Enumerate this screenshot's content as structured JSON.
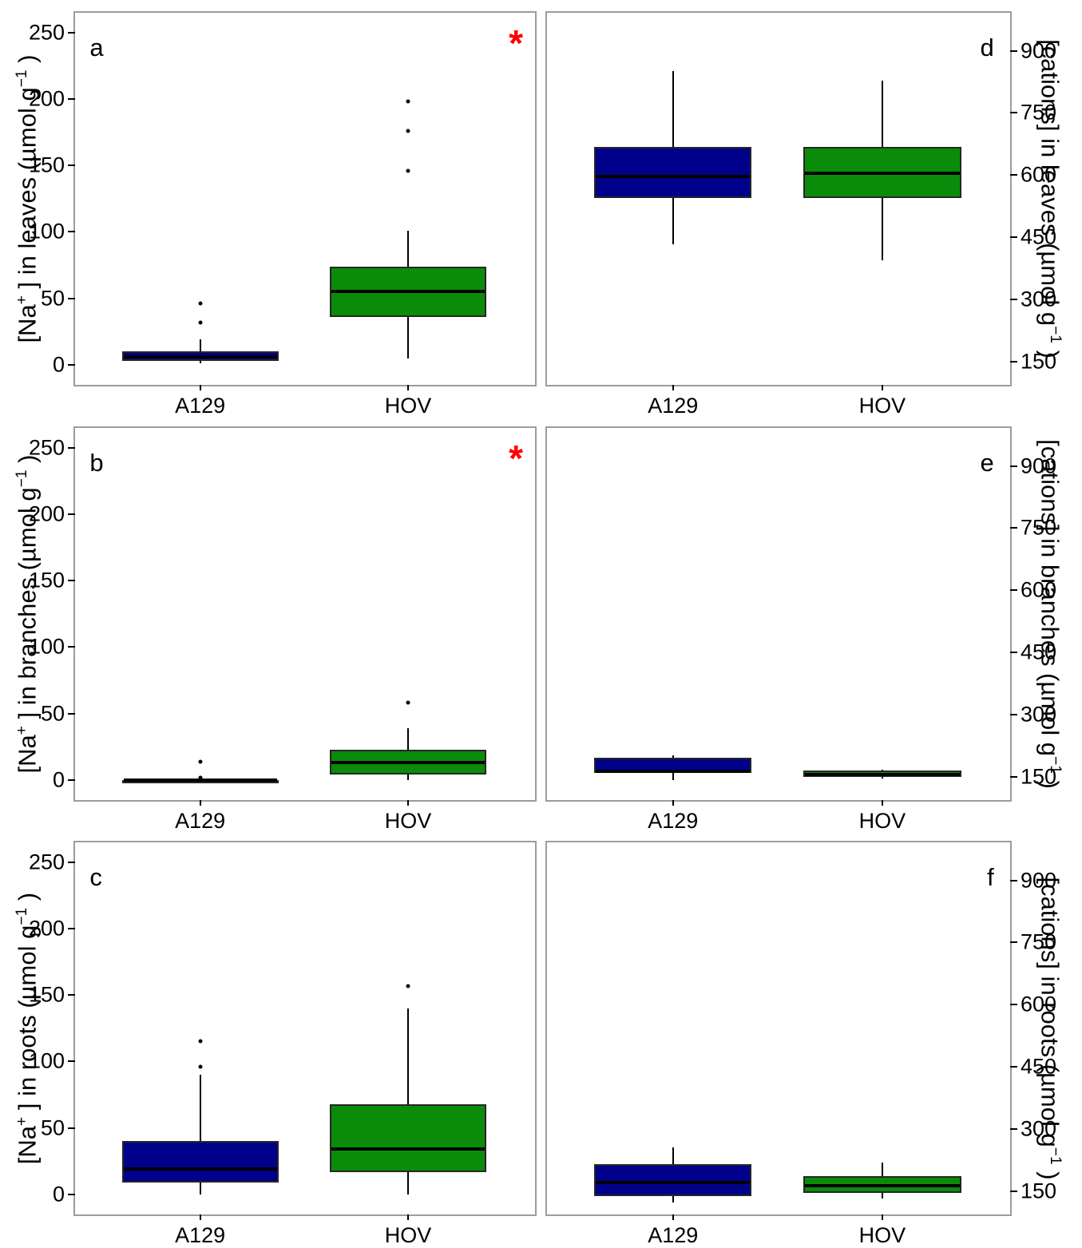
{
  "figure": {
    "x_categories": [
      "A129",
      "HOV"
    ],
    "group_colors": {
      "A129": "#00008B",
      "HOV": "#0A8C0A"
    },
    "significance_color": "#FF0000",
    "panel_border_color": "#9C9C9C",
    "element_colors": {
      "whisker": "#000000",
      "median": "#000000",
      "outlier": "#000000",
      "box_outline": "#262626"
    }
  },
  "chart_data": [
    {
      "panel": "a",
      "type": "box",
      "axis_side": "left",
      "ylabel": "[Na+ ] in leaves (µmol g−1 )",
      "ylabel_html": "[Na<sup>+</sup> ] in leaves (µmol g<sup>−1</sup> )",
      "yticks": [
        0,
        50,
        100,
        150,
        200,
        250
      ],
      "ylim": [
        -16,
        265
      ],
      "grid": false,
      "significance": "*",
      "categories": [
        "A129",
        "HOV"
      ],
      "boxes": [
        {
          "group": "A129",
          "color": "#00008B",
          "whisker_low": 1,
          "q1": 3,
          "median": 6,
          "q3": 10,
          "whisker_high": 19,
          "outliers": [
            32,
            46
          ]
        },
        {
          "group": "HOV",
          "color": "#0A8C0A",
          "whisker_low": 5,
          "q1": 36,
          "median": 55,
          "q3": 74,
          "whisker_high": 101,
          "outliers": [
            146,
            176,
            198
          ]
        }
      ]
    },
    {
      "panel": "b",
      "type": "box",
      "axis_side": "left",
      "ylabel": "[Na+ ] in branches (µmol g−1 )",
      "ylabel_html": "[Na<sup>+</sup> ] in branches (µmol g<sup>−1</sup> )",
      "yticks": [
        0,
        50,
        100,
        150,
        200,
        250
      ],
      "ylim": [
        -16,
        265
      ],
      "grid": false,
      "significance": "*",
      "categories": [
        "A129",
        "HOV"
      ],
      "boxes": [
        {
          "group": "A129",
          "color": "#00008B",
          "whisker_low": 0,
          "q1": 0,
          "median": 0,
          "q3": 0,
          "whisker_high": 0,
          "outliers": [
            14,
            2
          ]
        },
        {
          "group": "HOV",
          "color": "#0A8C0A",
          "whisker_low": 0,
          "q1": 4,
          "median": 13,
          "q3": 23,
          "whisker_high": 39,
          "outliers": [
            58
          ]
        }
      ]
    },
    {
      "panel": "c",
      "type": "box",
      "axis_side": "left",
      "ylabel": "[Na+ ] in roots (µmol g−1 )",
      "ylabel_html": "[Na<sup>+</sup> ] in roots (µmol g<sup>−1</sup> )",
      "yticks": [
        0,
        50,
        100,
        150,
        200,
        250
      ],
      "ylim": [
        -16,
        265
      ],
      "grid": false,
      "significance": "",
      "categories": [
        "A129",
        "HOV"
      ],
      "boxes": [
        {
          "group": "A129",
          "color": "#00008B",
          "whisker_low": 0,
          "q1": 9,
          "median": 19,
          "q3": 40,
          "whisker_high": 90,
          "outliers": [
            96,
            115
          ]
        },
        {
          "group": "HOV",
          "color": "#0A8C0A",
          "whisker_low": 0,
          "q1": 17,
          "median": 34,
          "q3": 68,
          "whisker_high": 140,
          "outliers": [
            157
          ]
        }
      ]
    },
    {
      "panel": "d",
      "type": "box",
      "axis_side": "right",
      "ylabel": "[cations] in leaves (µmol g−1 )",
      "ylabel_html": "[cations] in leaves (µmol g<sup>−1</sup> )",
      "yticks": [
        150,
        300,
        450,
        600,
        750,
        900
      ],
      "ylim": [
        92,
        992
      ],
      "grid": false,
      "significance": "",
      "categories": [
        "A129",
        "HOV"
      ],
      "boxes": [
        {
          "group": "A129",
          "color": "#00008B",
          "whisker_low": 432,
          "q1": 545,
          "median": 596,
          "q3": 667,
          "whisker_high": 851,
          "outliers": []
        },
        {
          "group": "HOV",
          "color": "#0A8C0A",
          "whisker_low": 394,
          "q1": 545,
          "median": 604,
          "q3": 668,
          "whisker_high": 828,
          "outliers": []
        }
      ]
    },
    {
      "panel": "e",
      "type": "box",
      "axis_side": "right",
      "ylabel": "[cations] in branches (µmol g−1 )",
      "ylabel_html": "[cations] in branches (µmol g<sup>−1</sup> )",
      "yticks": [
        150,
        300,
        450,
        600,
        750,
        900
      ],
      "ylim": [
        92,
        992
      ],
      "grid": false,
      "significance": "",
      "categories": [
        "A129",
        "HOV"
      ],
      "boxes": [
        {
          "group": "A129",
          "color": "#00008B",
          "whisker_low": 141,
          "q1": 158,
          "median": 162,
          "q3": 196,
          "whisker_high": 201,
          "outliers": []
        },
        {
          "group": "HOV",
          "color": "#0A8C0A",
          "whisker_low": 146,
          "q1": 150,
          "median": 156,
          "q3": 164,
          "whisker_high": 166,
          "outliers": []
        }
      ]
    },
    {
      "panel": "f",
      "type": "box",
      "axis_side": "right",
      "ylabel": "[cations] in roots (µmol g−1 )",
      "ylabel_html": "[cations] in roots (µmol g<sup>−1</sup> )",
      "yticks": [
        150,
        300,
        450,
        600,
        750,
        900
      ],
      "ylim": [
        92,
        992
      ],
      "grid": false,
      "significance": "",
      "categories": [
        "A129",
        "HOV"
      ],
      "boxes": [
        {
          "group": "A129",
          "color": "#00008B",
          "whisker_low": 123,
          "q1": 138,
          "median": 171,
          "q3": 214,
          "whisker_high": 255,
          "outliers": []
        },
        {
          "group": "HOV",
          "color": "#0A8C0A",
          "whisker_low": 131,
          "q1": 146,
          "median": 162,
          "q3": 185,
          "whisker_high": 218,
          "outliers": []
        }
      ]
    }
  ]
}
